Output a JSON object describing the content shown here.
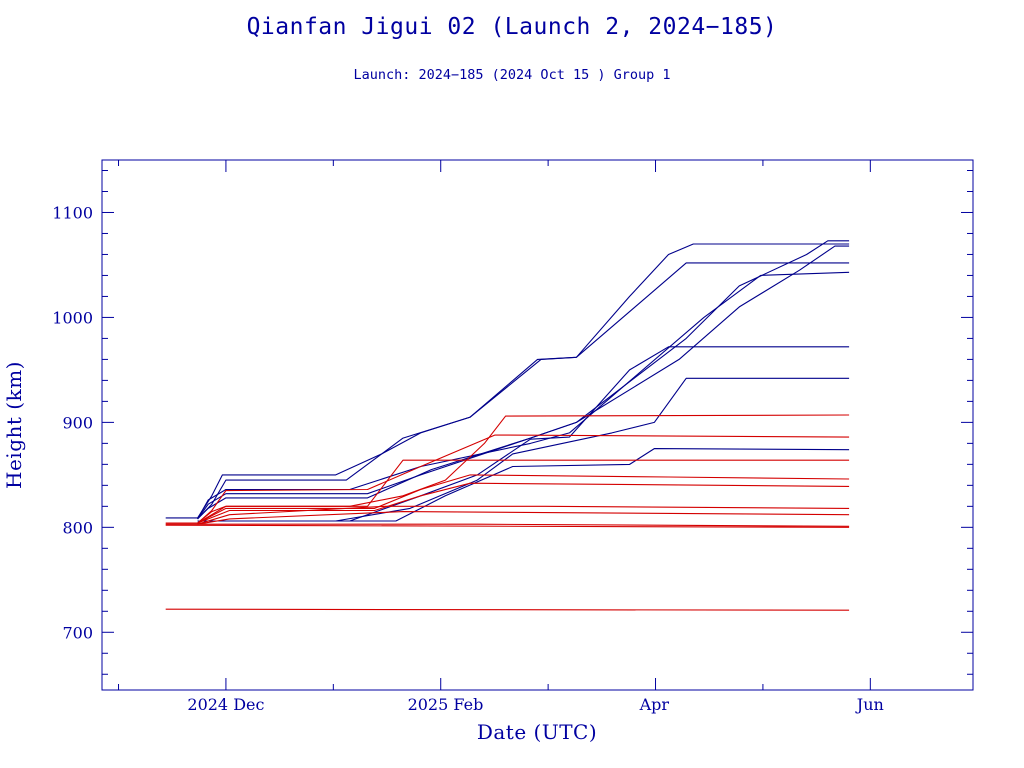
{
  "chart_data": {
    "type": "line",
    "title": "Qianfan Jigui 02 (Launch 2, 2024−185)",
    "subtitle": "Launch: 2024−185  (2024 Oct 15 )  Group 1",
    "xlabel": "Date (UTC)",
    "ylabel": "Height (km)",
    "xlim": [
      "2024-10-27",
      "2025-06-30"
    ],
    "ylim": [
      645,
      1150
    ],
    "x_ticks": [
      {
        "date": "2024-12-01",
        "label": "2024 Dec"
      },
      {
        "date": "2025-02-01",
        "label": "2025 Feb"
      },
      {
        "date": "2025-04-01",
        "label": "Apr"
      },
      {
        "date": "2025-06-01",
        "label": "Jun"
      }
    ],
    "y_ticks": [
      700,
      800,
      900,
      1000,
      1100
    ],
    "grid": false,
    "legend": "none",
    "colors": {
      "blue": "#00008b",
      "red": "#d40000",
      "axis": "#0000a0"
    },
    "series": [
      {
        "color": "blue",
        "points": [
          [
            "2024-11-14",
            809
          ],
          [
            "2024-11-23",
            809
          ],
          [
            "2024-11-27",
            830
          ],
          [
            "2024-11-30",
            850
          ],
          [
            "2025-01-01",
            850
          ],
          [
            "2025-01-14",
            870
          ],
          [
            "2025-01-25",
            890
          ],
          [
            "2025-02-08",
            905
          ],
          [
            "2025-02-28",
            960
          ],
          [
            "2025-03-10",
            962
          ],
          [
            "2025-03-25",
            1020
          ],
          [
            "2025-04-05",
            1060
          ],
          [
            "2025-04-12",
            1070
          ],
          [
            "2025-05-26",
            1070
          ]
        ]
      },
      {
        "color": "blue",
        "points": [
          [
            "2024-11-23",
            808
          ],
          [
            "2024-11-27",
            822
          ],
          [
            "2024-12-01",
            845
          ],
          [
            "2025-01-04",
            845
          ],
          [
            "2025-01-20",
            885
          ],
          [
            "2025-02-08",
            905
          ],
          [
            "2025-02-27",
            960
          ],
          [
            "2025-03-10",
            962
          ],
          [
            "2025-03-30",
            1020
          ],
          [
            "2025-04-10",
            1052
          ],
          [
            "2025-05-26",
            1052
          ]
        ]
      },
      {
        "color": "blue",
        "points": [
          [
            "2024-11-23",
            808
          ],
          [
            "2024-11-26",
            826
          ],
          [
            "2024-12-01",
            836
          ],
          [
            "2025-01-05",
            836
          ],
          [
            "2025-01-25",
            858
          ],
          [
            "2025-02-25",
            880
          ],
          [
            "2025-03-08",
            890
          ],
          [
            "2025-04-15",
            1000
          ],
          [
            "2025-05-01",
            1040
          ],
          [
            "2025-05-26",
            1043
          ]
        ]
      },
      {
        "color": "blue",
        "points": [
          [
            "2024-11-23",
            808
          ],
          [
            "2024-11-26",
            822
          ],
          [
            "2024-12-01",
            832
          ],
          [
            "2025-01-10",
            832
          ],
          [
            "2025-01-25",
            850
          ],
          [
            "2025-02-25",
            885
          ],
          [
            "2025-03-10",
            900
          ],
          [
            "2025-04-10",
            980
          ],
          [
            "2025-04-25",
            1030
          ],
          [
            "2025-05-14",
            1060
          ],
          [
            "2025-05-20",
            1073
          ],
          [
            "2025-05-26",
            1073
          ]
        ]
      },
      {
        "color": "blue",
        "points": [
          [
            "2024-11-23",
            808
          ],
          [
            "2024-11-26",
            818
          ],
          [
            "2024-12-01",
            828
          ],
          [
            "2025-01-10",
            828
          ],
          [
            "2025-01-28",
            855
          ],
          [
            "2025-02-25",
            885
          ],
          [
            "2025-03-10",
            900
          ],
          [
            "2025-04-08",
            960
          ],
          [
            "2025-04-25",
            1010
          ],
          [
            "2025-05-12",
            1045
          ],
          [
            "2025-05-22",
            1068
          ],
          [
            "2025-05-26",
            1068
          ]
        ]
      },
      {
        "color": "blue",
        "points": [
          [
            "2024-11-23",
            806
          ],
          [
            "2025-01-05",
            806
          ],
          [
            "2025-01-25",
            830
          ],
          [
            "2025-02-10",
            850
          ],
          [
            "2025-02-25",
            884
          ],
          [
            "2025-03-08",
            886
          ],
          [
            "2025-03-25",
            950
          ],
          [
            "2025-04-05",
            972
          ],
          [
            "2025-05-26",
            972
          ]
        ]
      },
      {
        "color": "blue",
        "points": [
          [
            "2024-11-23",
            806
          ],
          [
            "2025-01-01",
            806
          ],
          [
            "2025-01-22",
            818
          ],
          [
            "2025-02-10",
            845
          ],
          [
            "2025-02-20",
            870
          ],
          [
            "2025-03-20",
            890
          ],
          [
            "2025-04-01",
            900
          ],
          [
            "2025-04-10",
            942
          ],
          [
            "2025-05-26",
            942
          ]
        ]
      },
      {
        "color": "blue",
        "points": [
          [
            "2024-11-23",
            806
          ],
          [
            "2025-01-18",
            806
          ],
          [
            "2025-02-01",
            830
          ],
          [
            "2025-02-20",
            858
          ],
          [
            "2025-03-25",
            860
          ],
          [
            "2025-04-01",
            875
          ],
          [
            "2025-05-26",
            874
          ]
        ]
      },
      {
        "color": "red",
        "points": [
          [
            "2024-11-14",
            804
          ],
          [
            "2024-11-23",
            804
          ],
          [
            "2024-11-27",
            815
          ],
          [
            "2024-12-01",
            820
          ],
          [
            "2025-01-05",
            820
          ],
          [
            "2025-01-20",
            830
          ],
          [
            "2025-02-01",
            845
          ],
          [
            "2025-02-12",
            880
          ],
          [
            "2025-02-18",
            906
          ],
          [
            "2025-05-26",
            907
          ]
        ]
      },
      {
        "color": "red",
        "points": [
          [
            "2024-11-23",
            804
          ],
          [
            "2024-11-27",
            816
          ],
          [
            "2024-12-01",
            835
          ],
          [
            "2025-01-10",
            836
          ],
          [
            "2025-01-25",
            858
          ],
          [
            "2025-02-15",
            888
          ],
          [
            "2025-05-26",
            886
          ]
        ]
      },
      {
        "color": "red",
        "points": [
          [
            "2024-11-23",
            804
          ],
          [
            "2024-12-01",
            820
          ],
          [
            "2025-01-10",
            820
          ],
          [
            "2025-01-20",
            864
          ],
          [
            "2025-05-26",
            864
          ]
        ]
      },
      {
        "color": "red",
        "points": [
          [
            "2024-11-23",
            804
          ],
          [
            "2024-12-01",
            818
          ],
          [
            "2025-01-12",
            818
          ],
          [
            "2025-01-25",
            836
          ],
          [
            "2025-02-08",
            850
          ],
          [
            "2025-04-05",
            848
          ],
          [
            "2025-05-26",
            846
          ]
        ]
      },
      {
        "color": "red",
        "points": [
          [
            "2024-11-23",
            804
          ],
          [
            "2024-12-02",
            816
          ],
          [
            "2025-01-12",
            816
          ],
          [
            "2025-01-25",
            830
          ],
          [
            "2025-02-08",
            842
          ],
          [
            "2025-05-26",
            839
          ]
        ]
      },
      {
        "color": "red",
        "points": [
          [
            "2024-11-23",
            803
          ],
          [
            "2024-12-02",
            812
          ],
          [
            "2025-01-15",
            820
          ],
          [
            "2025-03-01",
            820
          ],
          [
            "2025-05-26",
            818
          ]
        ]
      },
      {
        "color": "red",
        "points": [
          [
            "2024-11-23",
            803
          ],
          [
            "2024-12-02",
            808
          ],
          [
            "2025-01-20",
            815
          ],
          [
            "2025-05-26",
            812
          ]
        ]
      },
      {
        "color": "red",
        "points": [
          [
            "2024-11-14",
            803
          ],
          [
            "2025-02-10",
            803
          ],
          [
            "2025-05-26",
            801
          ]
        ]
      },
      {
        "color": "red",
        "points": [
          [
            "2024-11-14",
            802
          ],
          [
            "2025-05-26",
            800
          ]
        ]
      },
      {
        "color": "red",
        "points": [
          [
            "2024-11-14",
            722
          ],
          [
            "2025-05-26",
            721
          ]
        ]
      }
    ]
  }
}
